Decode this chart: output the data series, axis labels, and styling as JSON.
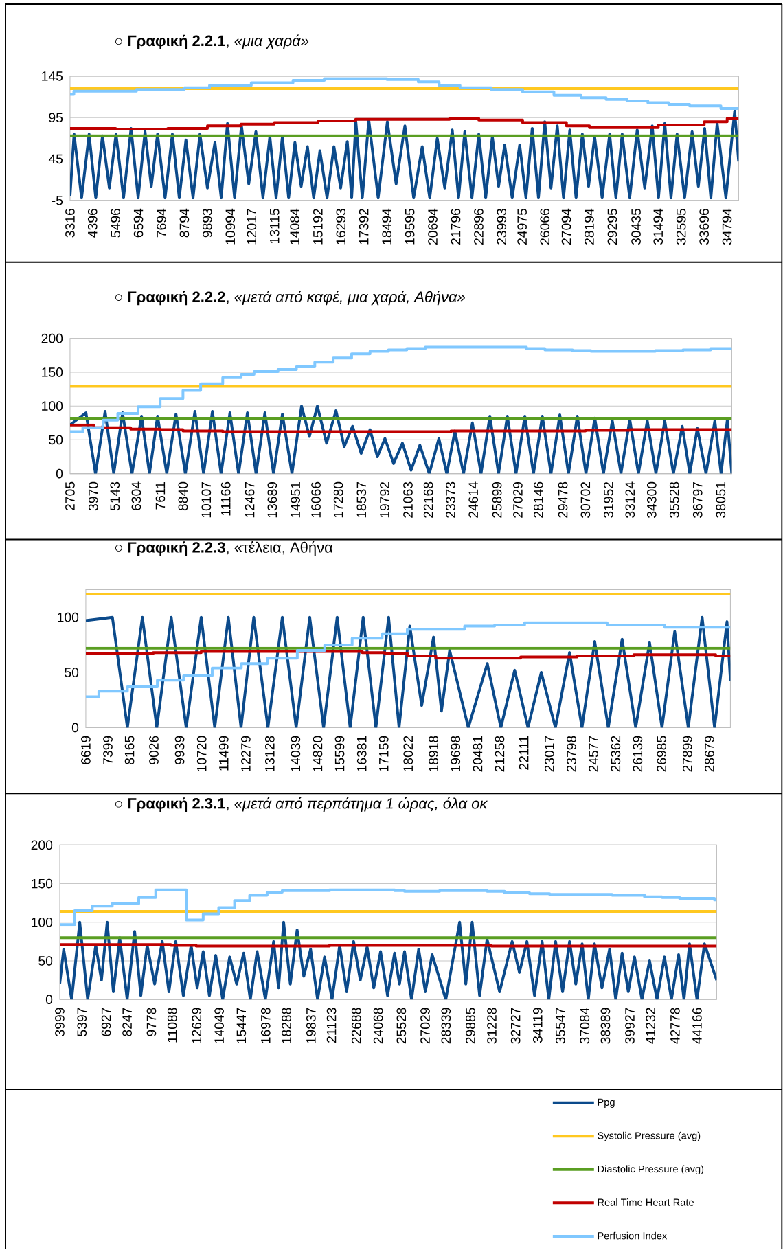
{
  "chart_data": [
    {
      "type": "line",
      "title": "○ **Γραφική 2.2.1**, *«μια χαρά»*",
      "grid": "y",
      "xlim": [
        3316,
        35350
      ],
      "ylim": [
        -5,
        145
      ],
      "yticks": [
        -5,
        45,
        95,
        145
      ],
      "xticks": [
        3316,
        4396,
        5496,
        6594,
        7694,
        8794,
        9893,
        10994,
        12017,
        13115,
        14084,
        15192,
        16293,
        17392,
        18494,
        19595,
        20694,
        21796,
        22896,
        23993,
        24975,
        26066,
        27094,
        28194,
        29295,
        30435,
        31494,
        32595,
        33696,
        34794
      ],
      "series": [
        {
          "color": "#0b4a8b",
          "x": [
            3316,
            3510,
            3870,
            4230,
            4550,
            4870,
            5200,
            5520,
            5880,
            6240,
            6580,
            6910,
            7210,
            7510,
            7870,
            8220,
            8550,
            8870,
            9210,
            9540,
            9900,
            10260,
            10560,
            10860,
            11200,
            11530,
            11880,
            12220,
            12560,
            12890,
            13190,
            13490,
            13790,
            14090,
            14390,
            14690,
            14990,
            15290,
            15630,
            15960,
            16280,
            16600,
            16810,
            17010,
            17320,
            17630,
            18080,
            18520,
            18940,
            19360,
            19780,
            20190,
            20550,
            20910,
            21270,
            21630,
            21930,
            22230,
            22570,
            22900,
            23230,
            23550,
            23850,
            24140,
            24500,
            24860,
            25160,
            25460,
            25760,
            26060,
            26360,
            26660,
            26960,
            27260,
            27560,
            27860,
            28160,
            28450,
            28810,
            29170,
            29470,
            29770,
            30130,
            30490,
            30850,
            31210,
            31510,
            31810,
            32110,
            32400,
            32760,
            33120,
            33420,
            33720,
            34020,
            34320,
            34740,
            35160,
            35350
          ],
          "values": [
            0,
            75,
            -2,
            75,
            -2,
            73,
            10,
            75,
            -2,
            82,
            -2,
            78,
            12,
            75,
            -2,
            75,
            -2,
            68,
            -2,
            75,
            10,
            65,
            -2,
            88,
            -2,
            85,
            15,
            78,
            -2,
            72,
            -2,
            72,
            -2,
            65,
            12,
            60,
            -2,
            55,
            -2,
            60,
            10,
            66,
            -2,
            90,
            -2,
            92,
            -2,
            90,
            15,
            85,
            -2,
            60,
            -2,
            70,
            10,
            80,
            -2,
            78,
            -2,
            75,
            -2,
            72,
            12,
            62,
            -2,
            62,
            -2,
            82,
            -2,
            90,
            10,
            85,
            -2,
            80,
            -2,
            75,
            12,
            72,
            -2,
            75,
            -2,
            75,
            -2,
            80,
            10,
            85,
            -2,
            88,
            -2,
            75,
            -2,
            78,
            12,
            82,
            -2,
            88,
            -2,
            103,
            42
          ]
        },
        {
          "color": "#ffc820",
          "x": [
            3316,
            35350
          ],
          "values": [
            130,
            130
          ]
        },
        {
          "color": "#5a9e22",
          "x": [
            3316,
            35350
          ],
          "values": [
            73,
            73
          ]
        },
        {
          "type": "step",
          "color": "#c00000",
          "x": [
            3316,
            5500,
            8000,
            9900,
            11500,
            13100,
            15200,
            17000,
            21500,
            22900,
            25000,
            27100,
            28200,
            31500,
            33700,
            34800,
            35350
          ],
          "values": [
            82,
            81,
            82,
            85,
            87,
            89,
            91,
            93,
            94,
            92,
            89,
            85,
            83,
            86,
            90,
            94,
            94
          ]
        },
        {
          "type": "step",
          "color": "#80c8ff",
          "x": [
            3316,
            3500,
            6500,
            8794,
            10000,
            12000,
            14000,
            15500,
            18500,
            20000,
            21000,
            22000,
            23500,
            25000,
            26500,
            27800,
            29000,
            30000,
            31000,
            32000,
            33000,
            34500,
            35350
          ],
          "values": [
            123,
            127,
            129,
            131,
            134,
            137,
            140,
            142,
            141,
            138,
            134,
            131,
            129,
            126,
            122,
            119,
            117,
            115,
            113,
            111,
            109,
            106,
            105
          ]
        }
      ]
    },
    {
      "type": "line",
      "title": "○ **Γραφική 2.2.2**, *«μετά από καφέ, μια χαρά, Αθήνα»*",
      "grid": "y",
      "xlim": [
        2705,
        38650
      ],
      "ylim": [
        0,
        200
      ],
      "yticks": [
        0,
        50,
        100,
        150,
        200
      ],
      "xticks": [
        2705,
        3970,
        5143,
        6304,
        7611,
        8840,
        10107,
        11166,
        12467,
        13689,
        14951,
        16066,
        17280,
        18537,
        19792,
        21063,
        22168,
        23373,
        24614,
        25899,
        27029,
        28146,
        29478,
        30702,
        31952,
        33124,
        34300,
        35528,
        36797,
        38051
      ],
      "series": [
        {
          "color": "#0b4a8b",
          "x": [
            2705,
            3570,
            4090,
            4610,
            5080,
            5560,
            6070,
            6590,
            7020,
            7460,
            7960,
            8460,
            8970,
            9490,
            9960,
            10440,
            10910,
            11390,
            11860,
            12340,
            12810,
            13290,
            13760,
            14240,
            14760,
            15280,
            15710,
            16140,
            16640,
            17150,
            17600,
            18050,
            18520,
            19000,
            19400,
            19810,
            20280,
            20760,
            21230,
            21710,
            22220,
            22740,
            23170,
            23610,
            24080,
            24560,
            25030,
            25510,
            25980,
            26460,
            26930,
            27410,
            27880,
            28360,
            28830,
            29310,
            29780,
            30260,
            30730,
            31210,
            31680,
            32160,
            32630,
            33110,
            33580,
            34060,
            34530,
            35010,
            35480,
            35960,
            36370,
            36780,
            37250,
            37730,
            38070,
            38410,
            38650
          ],
          "values": [
            72,
            90,
            0,
            92,
            0,
            90,
            0,
            85,
            0,
            85,
            0,
            88,
            0,
            92,
            0,
            92,
            0,
            90,
            0,
            90,
            0,
            90,
            0,
            88,
            0,
            100,
            55,
            100,
            45,
            93,
            40,
            70,
            30,
            65,
            25,
            52,
            15,
            45,
            5,
            42,
            0,
            52,
            0,
            63,
            0,
            75,
            0,
            85,
            0,
            85,
            0,
            85,
            0,
            85,
            0,
            87,
            0,
            85,
            0,
            82,
            0,
            78,
            0,
            80,
            0,
            78,
            0,
            78,
            0,
            70,
            0,
            67,
            0,
            78,
            0,
            80,
            0
          ]
        },
        {
          "color": "#ffc820",
          "x": [
            2705,
            38650
          ],
          "values": [
            129,
            129
          ]
        },
        {
          "color": "#5a9e22",
          "x": [
            2705,
            38650
          ],
          "values": [
            82,
            82
          ]
        },
        {
          "type": "step",
          "color": "#c00000",
          "x": [
            2705,
            4000,
            6000,
            7600,
            8840,
            11000,
            23400,
            30700,
            33100,
            38650
          ],
          "values": [
            72,
            68,
            66,
            65,
            63,
            62,
            63,
            64,
            65,
            65
          ]
        },
        {
          "type": "step",
          "color": "#80c8ff",
          "x": [
            2705,
            3400,
            4500,
            5300,
            6400,
            7600,
            8840,
            9800,
            11000,
            12000,
            12700,
            14000,
            15000,
            16000,
            17000,
            18000,
            19000,
            20000,
            21000,
            22000,
            27500,
            28500,
            30000,
            31000,
            34500,
            36000,
            37500,
            38650
          ],
          "values": [
            62,
            68,
            79,
            89,
            99,
            111,
            123,
            133,
            142,
            147,
            151,
            154,
            158,
            165,
            171,
            177,
            181,
            183,
            185,
            187,
            185,
            183,
            182,
            181,
            182,
            183,
            185,
            186
          ]
        }
      ]
    },
    {
      "type": "line",
      "title": "○ **Γραφική 2.2.3**, «τέλεια, Αθήνα",
      "xlim": [
        6619,
        29420
      ],
      "ylim": [
        0,
        125
      ],
      "yticks": [
        0,
        50,
        100
      ],
      "xticks": [
        6619,
        7399,
        8165,
        9026,
        9939,
        10720,
        11499,
        12279,
        13128,
        14039,
        14820,
        15599,
        16381,
        17159,
        18022,
        18918,
        19698,
        20481,
        21258,
        22111,
        23017,
        23798,
        24577,
        25362,
        26139,
        26985,
        27899,
        28679
      ],
      "series": [
        {
          "color": "#0b4a8b",
          "x": [
            6619,
            7560,
            8090,
            8620,
            9130,
            9640,
            10170,
            10700,
            11180,
            11660,
            12110,
            12560,
            13060,
            13570,
            14060,
            14540,
            15030,
            15510,
            15970,
            16430,
            16880,
            17330,
            17700,
            18080,
            18500,
            18920,
            19200,
            19490,
            20150,
            20820,
            21300,
            21790,
            22260,
            22730,
            23230,
            23730,
            24170,
            24620,
            25100,
            25590,
            26070,
            26560,
            27000,
            27450,
            27930,
            28420,
            28860,
            29300,
            29420
          ],
          "values": [
            97,
            100,
            0,
            100,
            0,
            100,
            0,
            100,
            0,
            100,
            0,
            100,
            0,
            100,
            0,
            100,
            0,
            100,
            0,
            100,
            0,
            100,
            0,
            92,
            20,
            82,
            15,
            70,
            0,
            58,
            0,
            52,
            0,
            50,
            0,
            68,
            0,
            78,
            0,
            80,
            0,
            77,
            0,
            87,
            0,
            100,
            0,
            96,
            42
          ]
        },
        {
          "color": "#ffc820",
          "x": [
            6619,
            29420
          ],
          "values": [
            121,
            121
          ]
        },
        {
          "color": "#5a9e22",
          "x": [
            6619,
            29420
          ],
          "values": [
            72,
            72
          ]
        },
        {
          "type": "step",
          "color": "#c00000",
          "x": [
            6619,
            9000,
            10700,
            16400,
            17200,
            18000,
            19000,
            22000,
            24000,
            26000,
            28900,
            29420
          ],
          "values": [
            67,
            68,
            69,
            68,
            67,
            65,
            63,
            64,
            65,
            66,
            65,
            65
          ]
        },
        {
          "type": "step",
          "color": "#80c8ff",
          "x": [
            6619,
            7080,
            8090,
            9150,
            10080,
            11090,
            12120,
            13040,
            14100,
            15070,
            16040,
            17100,
            17990,
            20020,
            21080,
            22140,
            25060,
            27090,
            29420
          ],
          "values": [
            28,
            33,
            37,
            43,
            47,
            54,
            58,
            63,
            70,
            75,
            81,
            85,
            89,
            92,
            93,
            95,
            93,
            91,
            91
          ]
        }
      ]
    },
    {
      "type": "line",
      "title": "○ **Γραφική 2.3.1**, *«μετά από περπάτημα 1 ώρας, όλα οκ*",
      "grid": "y",
      "legend": "bottom right",
      "xlim": [
        3999,
        45400
      ],
      "ylim": [
        0,
        200
      ],
      "yticks": [
        0,
        50,
        100,
        150,
        200
      ],
      "xticks": [
        3999,
        5397,
        6927,
        8247,
        9778,
        11088,
        12629,
        14049,
        15447,
        16978,
        18288,
        19837,
        21123,
        22688,
        24068,
        25528,
        27029,
        28339,
        29885,
        31228,
        32727,
        34119,
        35547,
        37084,
        38389,
        39927,
        41232,
        42778,
        44166
      ],
      "series": [
        {
          "name": "Ppg",
          "color": "#0b4a8b",
          "x": [
            3999,
            4250,
            4750,
            5260,
            5760,
            6270,
            6630,
            6990,
            7380,
            7780,
            8250,
            8720,
            9110,
            9510,
            9980,
            10460,
            10880,
            11310,
            11790,
            12280,
            12660,
            13040,
            13430,
            13830,
            14270,
            14710,
            15150,
            15590,
            16010,
            16440,
            16960,
            17480,
            17790,
            18110,
            18530,
            18960,
            19380,
            19810,
            20250,
            20690,
            21160,
            21640,
            22080,
            22520,
            22940,
            23370,
            23790,
            24220,
            24660,
            25100,
            25410,
            25730,
            26170,
            26620,
            27040,
            27470,
            28330,
            29200,
            29590,
            29990,
            30460,
            30930,
            31720,
            32510,
            32970,
            33440,
            33920,
            34400,
            34820,
            35250,
            35690,
            36130,
            36520,
            36920,
            37310,
            37700,
            38170,
            38650,
            39040,
            39440,
            39830,
            40220,
            40690,
            41170,
            41640,
            42110,
            42550,
            43000,
            43340,
            43690,
            44160,
            44630,
            45400
          ],
          "values": [
            20,
            65,
            0,
            100,
            0,
            70,
            25,
            100,
            10,
            80,
            0,
            88,
            5,
            70,
            20,
            75,
            10,
            75,
            5,
            70,
            15,
            62,
            5,
            57,
            0,
            55,
            20,
            60,
            0,
            62,
            0,
            75,
            15,
            100,
            20,
            90,
            30,
            65,
            0,
            55,
            0,
            70,
            10,
            75,
            25,
            68,
            15,
            62,
            5,
            60,
            20,
            62,
            0,
            65,
            10,
            58,
            0,
            100,
            20,
            100,
            5,
            78,
            10,
            75,
            35,
            75,
            5,
            75,
            0,
            75,
            10,
            75,
            20,
            72,
            0,
            72,
            15,
            65,
            0,
            60,
            10,
            55,
            0,
            50,
            0,
            55,
            0,
            58,
            0,
            72,
            0,
            72,
            25
          ]
        },
        {
          "name": "Systolic Pressure (avg)",
          "color": "#ffc820",
          "x": [
            3999,
            45400
          ],
          "values": [
            114,
            114
          ]
        },
        {
          "name": "Diastolic Pressure (avg)",
          "color": "#5a9e22",
          "x": [
            3999,
            45400
          ],
          "values": [
            80,
            80
          ]
        },
        {
          "name": "Real Time Heart Rate",
          "type": "step",
          "color": "#c00000",
          "x": [
            3999,
            11000,
            12600,
            21000,
            31200,
            45400
          ],
          "values": [
            71,
            70,
            69,
            70,
            69,
            69
          ]
        },
        {
          "name": "Perfusion Index",
          "type": "step",
          "color": "#80c8ff",
          "x": [
            3999,
            4940,
            6050,
            7310,
            8980,
            10050,
            11970,
            13040,
            14020,
            15020,
            15970,
            17070,
            18020,
            21010,
            25100,
            25730,
            27940,
            30930,
            32030,
            33610,
            34870,
            38810,
            40850,
            41960,
            43060,
            45260,
            45400
          ],
          "values": [
            97,
            115,
            121,
            124,
            132,
            142,
            103,
            111,
            119,
            128,
            135,
            139,
            141,
            142,
            141,
            140,
            141,
            140,
            138,
            137,
            136,
            135,
            133,
            132,
            131,
            129,
            129
          ]
        }
      ]
    }
  ]
}
